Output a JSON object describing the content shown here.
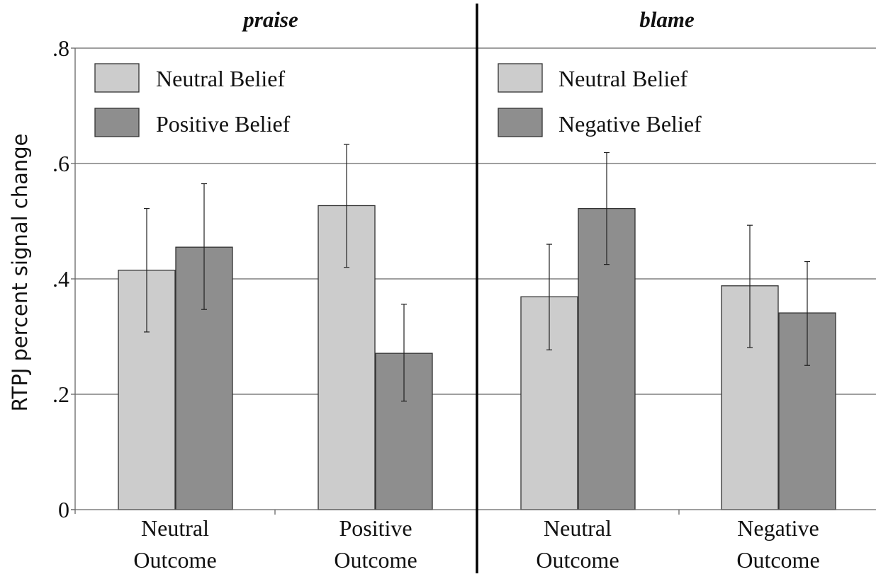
{
  "chart_data": {
    "type": "bar",
    "ylabel": "RTPJ percent signal change",
    "ylim": [
      0,
      0.8
    ],
    "yticks": [
      {
        "value": 0,
        "label": "0"
      },
      {
        "value": 0.2,
        "label": ".2"
      },
      {
        "value": 0.4,
        "label": ".4"
      },
      {
        "value": 0.6,
        "label": ".6"
      },
      {
        "value": 0.8,
        "label": ".8"
      }
    ],
    "grid": true,
    "legend_position": "top-left of each panel",
    "colors": {
      "light": "#cccccc",
      "dark": "#8e8e8e",
      "edge": "#333333",
      "grid": "#666666",
      "divider": "#000000"
    },
    "panels": [
      {
        "title": "praise",
        "categories": [
          [
            "Neutral",
            "Outcome"
          ],
          [
            "Positive",
            "Outcome"
          ]
        ],
        "series": [
          {
            "name": "Neutral Belief",
            "color": "#cccccc",
            "values": [
              0.415,
              0.527
            ],
            "error_low": [
              0.308,
              0.42
            ],
            "error_high": [
              0.522,
              0.633
            ]
          },
          {
            "name": "Positive Belief",
            "color": "#8e8e8e",
            "values": [
              0.455,
              0.271
            ],
            "error_low": [
              0.347,
              0.188
            ],
            "error_high": [
              0.565,
              0.356
            ]
          }
        ]
      },
      {
        "title": "blame",
        "categories": [
          [
            "Neutral",
            "Outcome"
          ],
          [
            "Negative",
            "Outcome"
          ]
        ],
        "series": [
          {
            "name": "Neutral Belief",
            "color": "#cccccc",
            "values": [
              0.369,
              0.388
            ],
            "error_low": [
              0.277,
              0.281
            ],
            "error_high": [
              0.46,
              0.493
            ]
          },
          {
            "name": "Negative Belief",
            "color": "#8e8e8e",
            "values": [
              0.522,
              0.341
            ],
            "error_low": [
              0.425,
              0.25
            ],
            "error_high": [
              0.619,
              0.43
            ]
          }
        ]
      }
    ]
  }
}
